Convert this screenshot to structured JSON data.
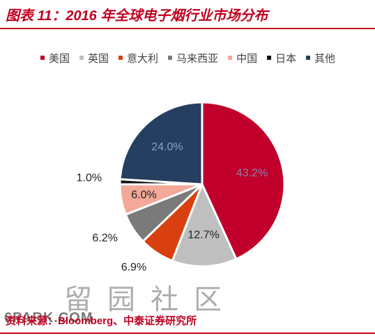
{
  "header": {
    "title": "图表 11：2016 年全球电子烟行业市场分布"
  },
  "footer": {
    "source": "资料来源：Bloomberg、中泰证券研究所"
  },
  "watermark": {
    "text": "留园社区",
    "sub": "6PARK.COM"
  },
  "chart_data": {
    "type": "pie",
    "title": "",
    "categories": [
      "美国",
      "英国",
      "意大利",
      "马来西亚",
      "中国",
      "日本",
      "其他"
    ],
    "values": [
      43.2,
      12.7,
      6.9,
      6.2,
      6.0,
      1.0,
      24.0
    ],
    "labels": [
      "43.2%",
      "12.7%",
      "6.9%",
      "6.2%",
      "6.0%",
      "1.0%",
      "24.0%"
    ],
    "colors": [
      "#c0002a",
      "#bfbfbf",
      "#d9400f",
      "#7a7a7a",
      "#f3a898",
      "#111111",
      "#243f60"
    ],
    "legend_position": "top",
    "start": "12 o'clock",
    "direction": "clockwise"
  }
}
